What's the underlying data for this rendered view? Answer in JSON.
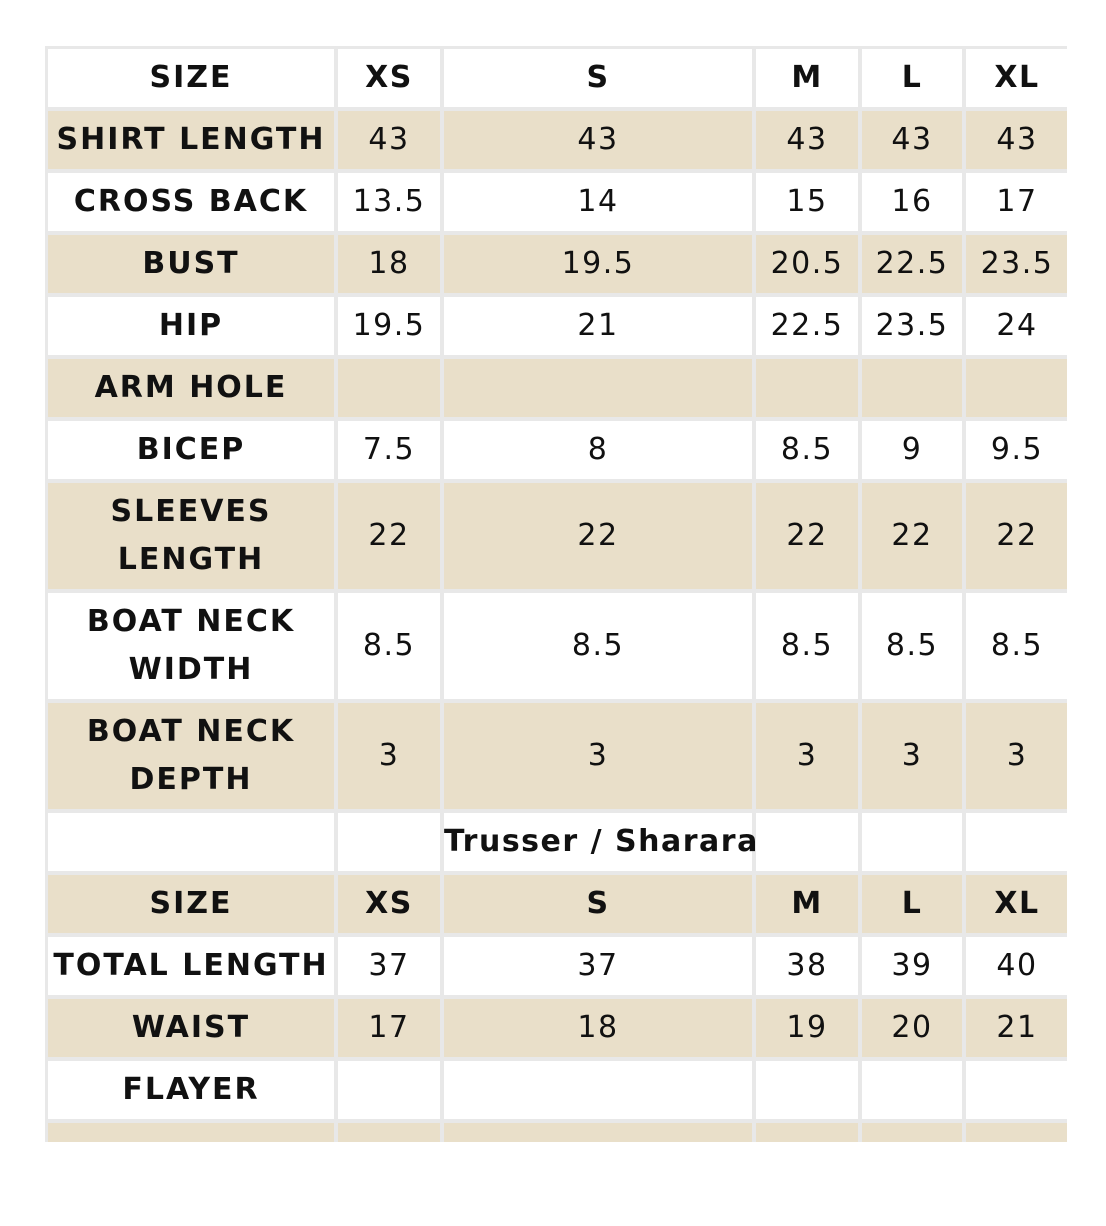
{
  "columns": [
    "XS",
    "S",
    "M",
    "L",
    "XL"
  ],
  "colors": {
    "band": "#e9dfc9",
    "white": "#ffffff",
    "grid": "#e8e8e8",
    "text": "#111111"
  },
  "shirt_table": {
    "header": {
      "label": "SIZE",
      "values": [
        "XS",
        "S",
        "M",
        "L",
        "XL"
      ]
    },
    "rows": [
      {
        "label": "SHIRT LENGTH",
        "values": [
          "43",
          "43",
          "43",
          "43",
          "43"
        ]
      },
      {
        "label": "CROSS BACK",
        "values": [
          "13.5",
          "14",
          "15",
          "16",
          "17"
        ]
      },
      {
        "label": "BUST",
        "values": [
          "18",
          "19.5",
          "20.5",
          "22.5",
          "23.5"
        ]
      },
      {
        "label": "HIP",
        "values": [
          "19.5",
          "21",
          "22.5",
          "23.5",
          "24"
        ]
      },
      {
        "label": "ARM HOLE",
        "values": [
          "",
          "",
          "",
          "",
          ""
        ]
      },
      {
        "label": "BICEP",
        "values": [
          "7.5",
          "8",
          "8.5",
          "9",
          "9.5"
        ]
      },
      {
        "label_line1": "SLEEVES",
        "label_line2": "LENGTH",
        "values": [
          "22",
          "22",
          "22",
          "22",
          "22"
        ]
      },
      {
        "label_line1": "BOAT NECK",
        "label_line2": "WIDTH",
        "values": [
          "8.5",
          "8.5",
          "8.5",
          "8.5",
          "8.5"
        ]
      },
      {
        "label_line1": "BOAT NECK",
        "label_line2": "DEPTH",
        "values": [
          "3",
          "3",
          "3",
          "3",
          "3"
        ]
      }
    ]
  },
  "bottom_section": {
    "title": "Trusser / Sharara",
    "header": {
      "label": "SIZE",
      "values": [
        "XS",
        "S",
        "M",
        "L",
        "XL"
      ]
    },
    "rows": [
      {
        "label": "TOTAL LENGTH",
        "values": [
          "37",
          "37",
          "38",
          "39",
          "40"
        ]
      },
      {
        "label": "WAIST",
        "values": [
          "17",
          "18",
          "19",
          "20",
          "21"
        ]
      },
      {
        "label": "FLAYER",
        "values": [
          "",
          "",
          "",
          "",
          ""
        ]
      }
    ]
  }
}
